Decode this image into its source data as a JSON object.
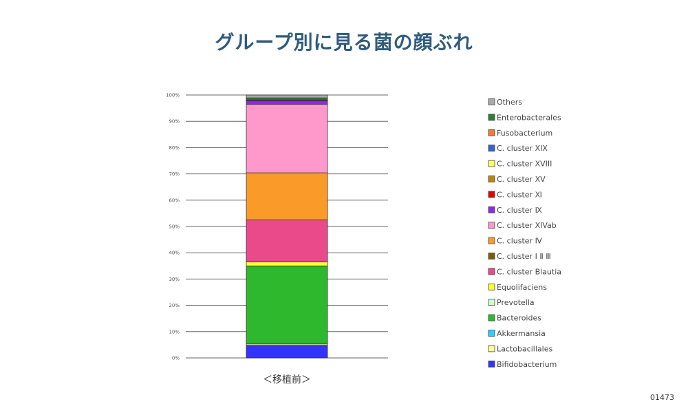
{
  "title": "グループ別に見る菌の顔ぶれ",
  "doc_number": "01473",
  "chart_data": {
    "type": "bar",
    "stacked": true,
    "categories": [
      "＜移植前＞"
    ],
    "ylim": [
      0,
      100
    ],
    "yticks": [
      "0%",
      "10%",
      "20%",
      "30%",
      "40%",
      "50%",
      "60%",
      "70%",
      "80%",
      "90%",
      "100%"
    ],
    "grid": true,
    "legend_position": "right",
    "series": [
      {
        "name": "Bifidobacterium",
        "color": "#3333ff",
        "values": [
          4.8
        ]
      },
      {
        "name": "Lactobacillales",
        "color": "#ffff99",
        "values": [
          0.5
        ]
      },
      {
        "name": "Akkermansia",
        "color": "#33ccff",
        "values": [
          0
        ]
      },
      {
        "name": "Bacteroides",
        "color": "#2eb82e",
        "values": [
          29.7
        ]
      },
      {
        "name": "Prevotella",
        "color": "#ccffcc",
        "values": [
          0
        ]
      },
      {
        "name": "Equolifaciens",
        "color": "#ffff33",
        "values": [
          1.5
        ]
      },
      {
        "name": "C. cluster Blautia",
        "color": "#ea4a8a",
        "values": [
          16.0
        ]
      },
      {
        "name": "C. cluster Ⅰ Ⅱ Ⅲ",
        "color": "#7a5c00",
        "values": [
          0
        ]
      },
      {
        "name": "C. cluster Ⅳ",
        "color": "#fa9a28",
        "values": [
          17.9
        ]
      },
      {
        "name": "C. cluster XIVab",
        "color": "#ff99cc",
        "values": [
          26.1
        ]
      },
      {
        "name": "C. cluster Ⅸ",
        "color": "#8a2be2",
        "values": [
          1.3
        ]
      },
      {
        "name": "C. cluster Ⅺ",
        "color": "#e60000",
        "values": [
          0.3
        ]
      },
      {
        "name": "C. cluster XV",
        "color": "#b8860b",
        "values": [
          0
        ]
      },
      {
        "name": "C. cluster XVIII",
        "color": "#ffff66",
        "values": [
          0
        ]
      },
      {
        "name": "C. cluster XIX",
        "color": "#3366cc",
        "values": [
          0
        ]
      },
      {
        "name": "Fusobacterium",
        "color": "#ff7733",
        "values": [
          0
        ]
      },
      {
        "name": "Enterobacterales",
        "color": "#2e7d32",
        "values": [
          0.8
        ]
      },
      {
        "name": "Others",
        "color": "#aaaaaa",
        "values": [
          1.1
        ]
      }
    ]
  }
}
